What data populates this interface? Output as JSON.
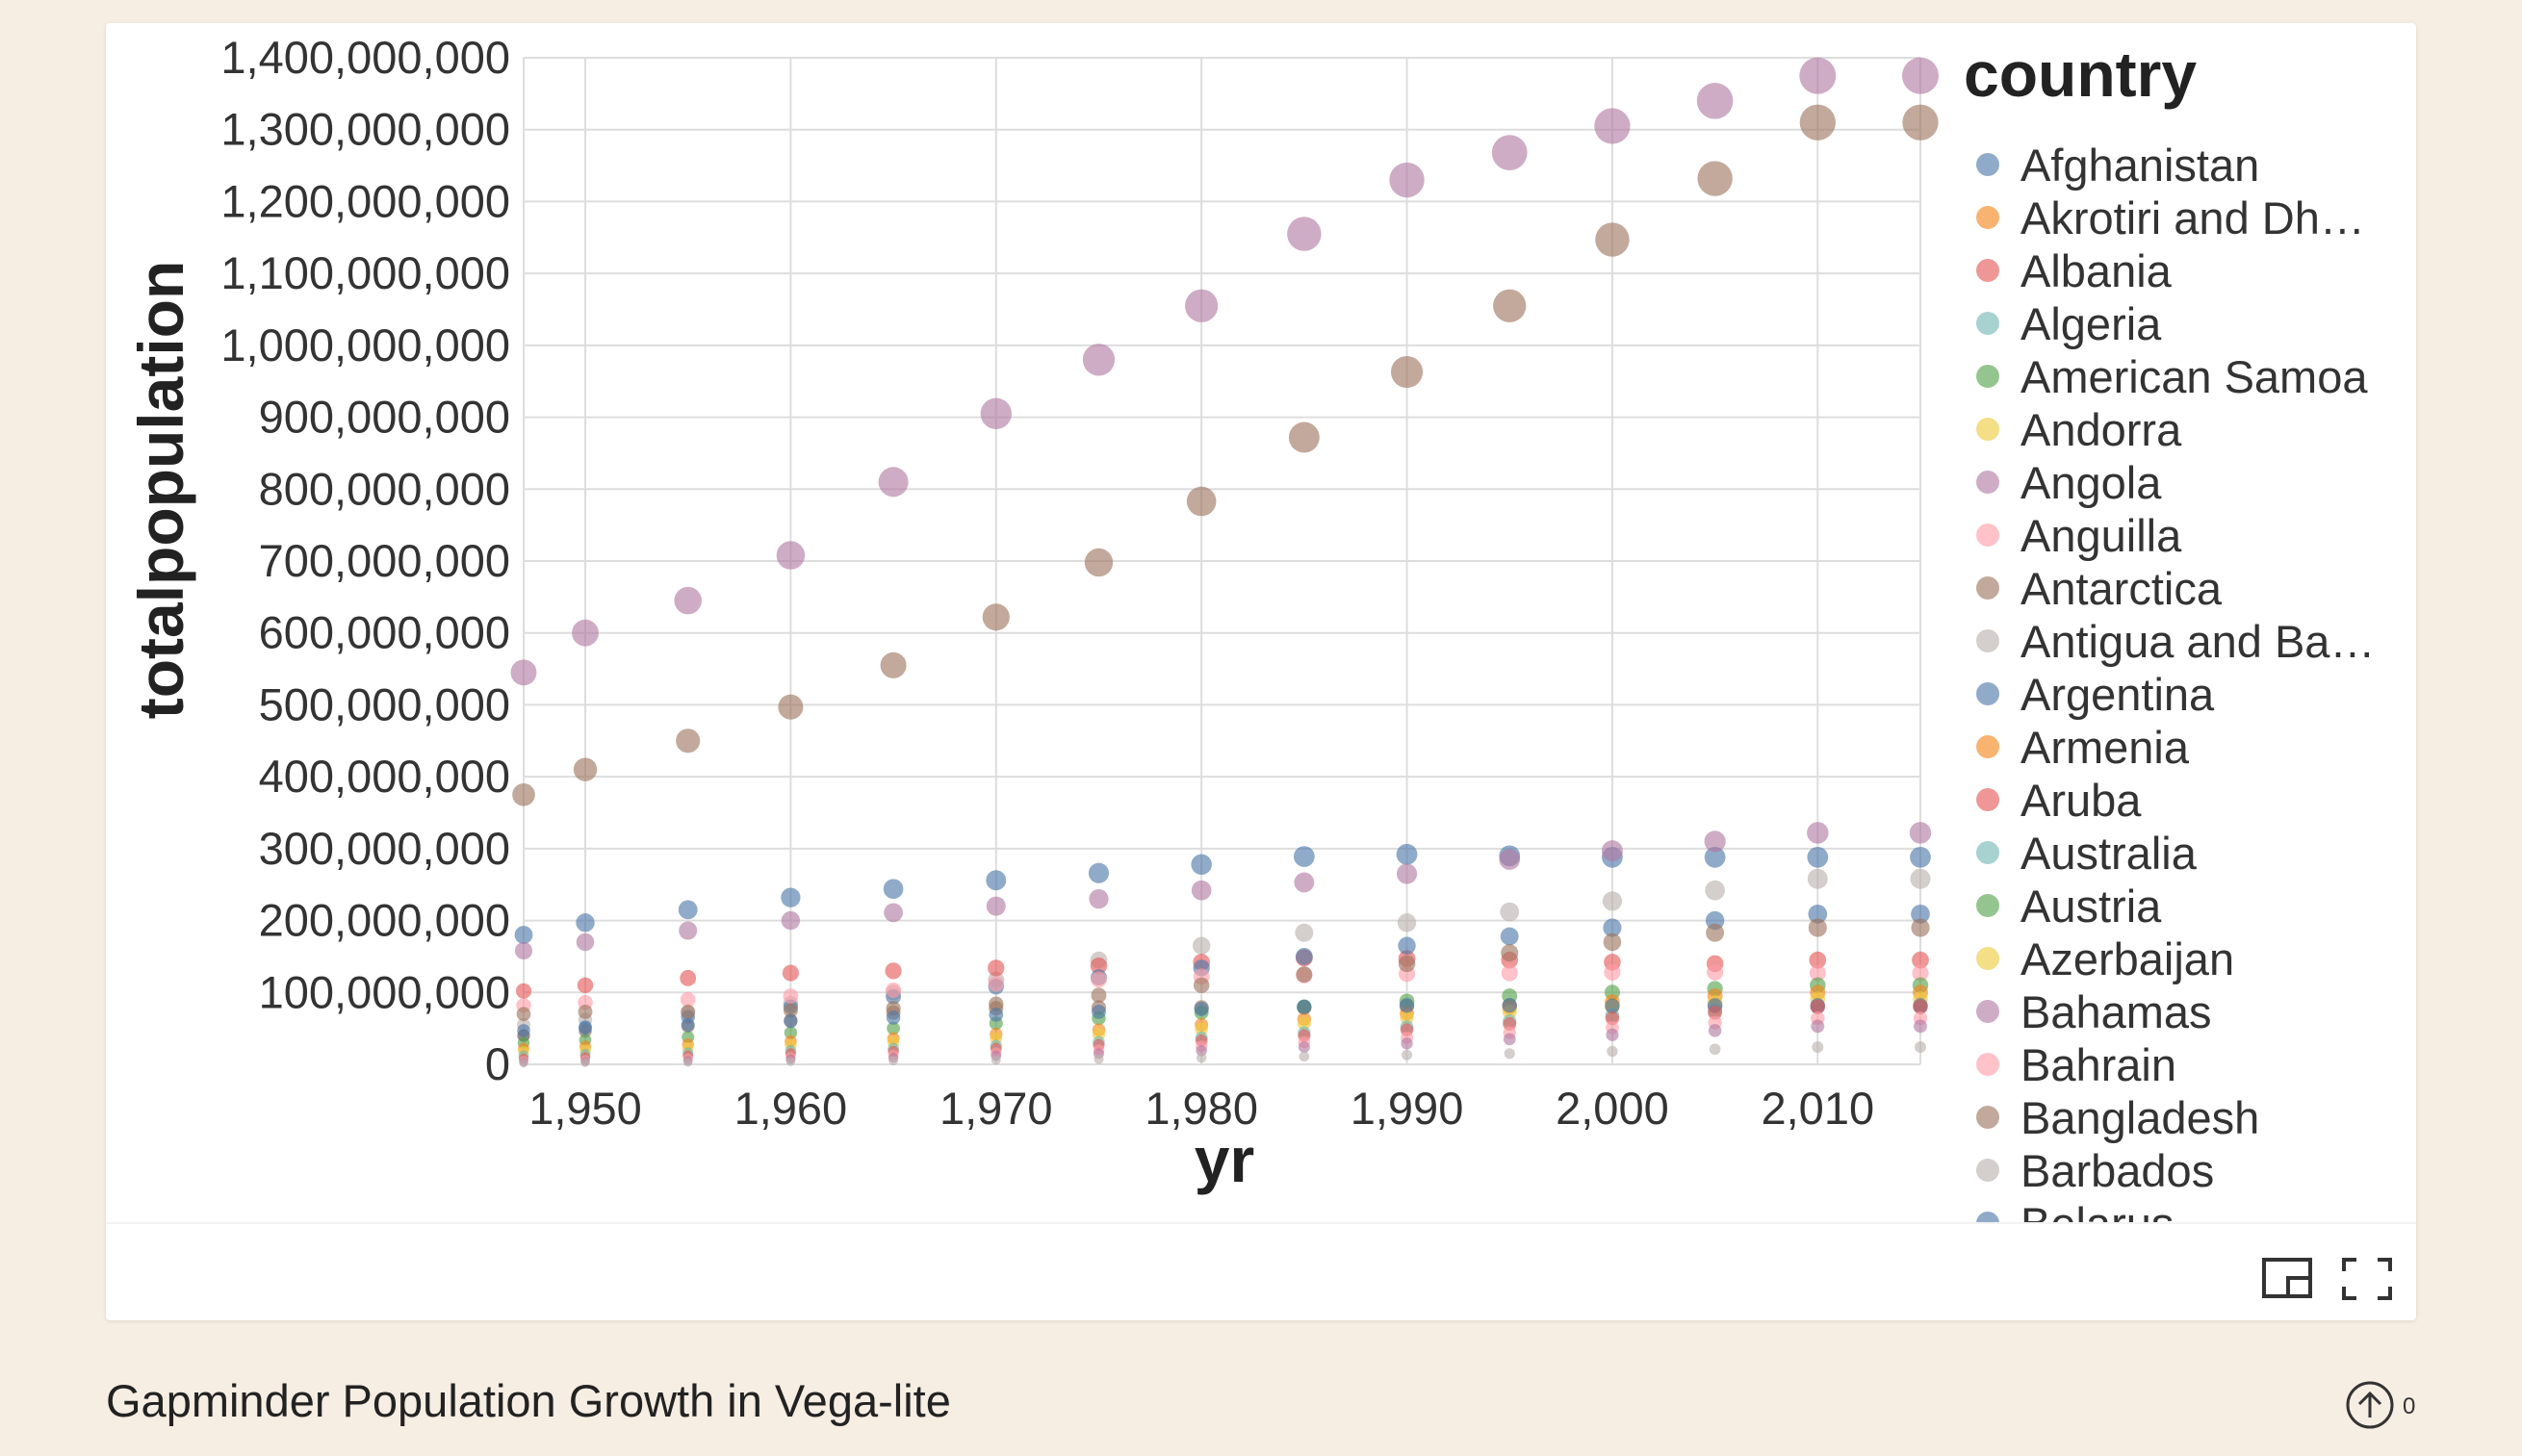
{
  "caption": "Gapminder Population Growth in Vega-lite",
  "upvote_count": "0",
  "colors": {
    "page_background": "#f6ede3",
    "card_background": "#ffffff",
    "gridline": "#dddddd",
    "palette": [
      "#4c78a8",
      "#f58518",
      "#e45756",
      "#72b7b2",
      "#54a24b",
      "#eeca3b",
      "#b279a2",
      "#ff9da6",
      "#9d755d",
      "#bab0ac"
    ]
  },
  "icons": {
    "pip": "picture-in-picture-icon",
    "fullscreen": "fullscreen-icon",
    "upvote": "arrow-up-circle-icon"
  },
  "chart_data": {
    "type": "scatter",
    "xlabel": "yr",
    "ylabel": "totalpopulation",
    "xlim": [
      1947,
      2015
    ],
    "ylim": [
      0,
      1400000000
    ],
    "x_ticks": [
      1950,
      1960,
      1970,
      1980,
      1990,
      2000,
      2010
    ],
    "x_tick_labels": [
      "1,950",
      "1,960",
      "1,970",
      "1,980",
      "1,990",
      "2,000",
      "2,010"
    ],
    "y_ticks": [
      0,
      100000000,
      200000000,
      300000000,
      400000000,
      500000000,
      600000000,
      700000000,
      800000000,
      900000000,
      1000000000,
      1100000000,
      1200000000,
      1300000000,
      1400000000
    ],
    "y_tick_labels": [
      "0",
      "100,000,000",
      "200,000,000",
      "300,000,000",
      "400,000,000",
      "500,000,000",
      "600,000,000",
      "700,000,000",
      "800,000,000",
      "900,000,000",
      "1,000,000,000",
      "1,100,000,000",
      "1,200,000,000",
      "1,300,000,000",
      "1,400,000,000"
    ],
    "size_encoding": "totalpopulation",
    "grid": true,
    "legend": {
      "title": "country",
      "position": "right",
      "items": [
        "Afghanistan",
        "Akrotiri and Dh…",
        "Albania",
        "Algeria",
        "American Samoa",
        "Andorra",
        "Angola",
        "Anguilla",
        "Antarctica",
        "Antigua and Ba…",
        "Argentina",
        "Armenia",
        "Aruba",
        "Australia",
        "Austria",
        "Azerbaijan",
        "Bahamas",
        "Bahrain",
        "Bangladesh",
        "Barbados",
        "Belarus"
      ]
    },
    "years": [
      1947,
      1950,
      1955,
      1960,
      1965,
      1970,
      1975,
      1980,
      1985,
      1990,
      1995,
      2000,
      2005,
      2010,
      2015
    ],
    "series": [
      {
        "color": "#b279a2",
        "values": [
          545000000,
          600000000,
          645000000,
          708000000,
          810000000,
          905000000,
          980000000,
          1055000000,
          1155000000,
          1230000000,
          1268000000,
          1305000000,
          1340000000,
          1375000000,
          1375000000
        ]
      },
      {
        "color": "#9d755d",
        "values": [
          375000000,
          410000000,
          450000000,
          497000000,
          555000000,
          622000000,
          698000000,
          783000000,
          872000000,
          963000000,
          1055000000,
          1147000000,
          1232000000,
          1310000000,
          1310000000
        ]
      },
      {
        "color": "#4c78a8",
        "values": [
          180000000,
          197000000,
          215000000,
          232000000,
          244000000,
          256000000,
          266000000,
          278000000,
          289000000,
          292000000,
          290000000,
          288000000,
          288000000,
          288000000,
          288000000
        ]
      },
      {
        "color": "#b279a2",
        "values": [
          158000000,
          170000000,
          186000000,
          200000000,
          211000000,
          220000000,
          230000000,
          242000000,
          253000000,
          265000000,
          285000000,
          297000000,
          310000000,
          322000000,
          322000000
        ]
      },
      {
        "color": "#bab0ac",
        "values": [
          55000000,
          62000000,
          72000000,
          85000000,
          100000000,
          118000000,
          145000000,
          165000000,
          183000000,
          197000000,
          212000000,
          227000000,
          242000000,
          258000000,
          258000000
        ]
      },
      {
        "color": "#e45756",
        "values": [
          102000000,
          110000000,
          120000000,
          127000000,
          130000000,
          134000000,
          137000000,
          142000000,
          148000000,
          147000000,
          145000000,
          142000000,
          140000000,
          145000000,
          145000000
        ]
      },
      {
        "color": "#4c78a8",
        "values": [
          40000000,
          52000000,
          66000000,
          80000000,
          94000000,
          108000000,
          121000000,
          134000000,
          150000000,
          165000000,
          178000000,
          190000000,
          200000000,
          209000000,
          209000000
        ]
      },
      {
        "color": "#ff9da6",
        "values": [
          82000000,
          86000000,
          90000000,
          95000000,
          103000000,
          112000000,
          118000000,
          122000000,
          124000000,
          126000000,
          127000000,
          128000000,
          128000000,
          127000000,
          127000000
        ]
      },
      {
        "color": "#9d755d",
        "values": [
          40000000,
          46000000,
          53000000,
          61000000,
          72000000,
          84000000,
          96000000,
          110000000,
          125000000,
          140000000,
          155000000,
          170000000,
          183000000,
          190000000,
          190000000
        ]
      },
      {
        "color": "#9d755d",
        "values": [
          70000000,
          73000000,
          73000000,
          75000000,
          78000000,
          78000000,
          79000000,
          79000000,
          79000000,
          81000000,
          82000000,
          82000000,
          81000000,
          81000000,
          81000000
        ]
      },
      {
        "color": "#54a24b",
        "values": [
          30000000,
          34000000,
          38000000,
          44000000,
          50000000,
          57000000,
          64000000,
          72000000,
          80000000,
          88000000,
          95000000,
          100000000,
          105000000,
          110000000,
          110000000
        ]
      },
      {
        "color": "#f58518",
        "values": [
          22000000,
          25000000,
          28000000,
          32000000,
          36000000,
          42000000,
          48000000,
          55000000,
          63000000,
          71000000,
          79000000,
          87000000,
          95000000,
          100000000,
          100000000
        ]
      },
      {
        "color": "#eeca3b",
        "values": [
          18000000,
          20000000,
          23000000,
          27000000,
          31000000,
          36000000,
          42000000,
          49000000,
          57000000,
          65000000,
          73000000,
          80000000,
          86000000,
          91000000,
          91000000
        ]
      },
      {
        "color": "#72b7b2",
        "values": [
          12000000,
          14000000,
          16000000,
          19000000,
          22000000,
          26000000,
          31000000,
          37000000,
          44000000,
          52000000,
          60000000,
          68000000,
          75000000,
          80000000,
          80000000
        ]
      },
      {
        "color": "#4c78a8",
        "values": [
          47000000,
          50000000,
          55000000,
          60000000,
          65000000,
          69000000,
          73000000,
          77000000,
          80000000,
          82000000,
          82000000,
          81000000,
          82000000,
          82000000,
          82000000
        ]
      },
      {
        "color": "#e45756",
        "values": [
          8000000,
          10000000,
          12000000,
          15000000,
          18000000,
          22000000,
          27000000,
          33000000,
          40000000,
          48000000,
          56000000,
          64000000,
          72000000,
          80000000,
          80000000
        ]
      },
      {
        "color": "#ff9da6",
        "values": [
          5000000,
          6000000,
          8000000,
          10000000,
          13000000,
          16000000,
          20000000,
          25000000,
          31000000,
          37000000,
          44000000,
          51000000,
          58000000,
          64000000,
          64000000
        ]
      },
      {
        "color": "#b279a2",
        "values": [
          3000000,
          4000000,
          5000000,
          7000000,
          9000000,
          12000000,
          15000000,
          19000000,
          24000000,
          29000000,
          35000000,
          41000000,
          47000000,
          53000000,
          53000000
        ]
      },
      {
        "color": "#bab0ac",
        "values": [
          2000000,
          2500000,
          3000000,
          4000000,
          5000000,
          6000000,
          7000000,
          9000000,
          11000000,
          13000000,
          15000000,
          18000000,
          21000000,
          24000000,
          24000000
        ]
      }
    ]
  }
}
